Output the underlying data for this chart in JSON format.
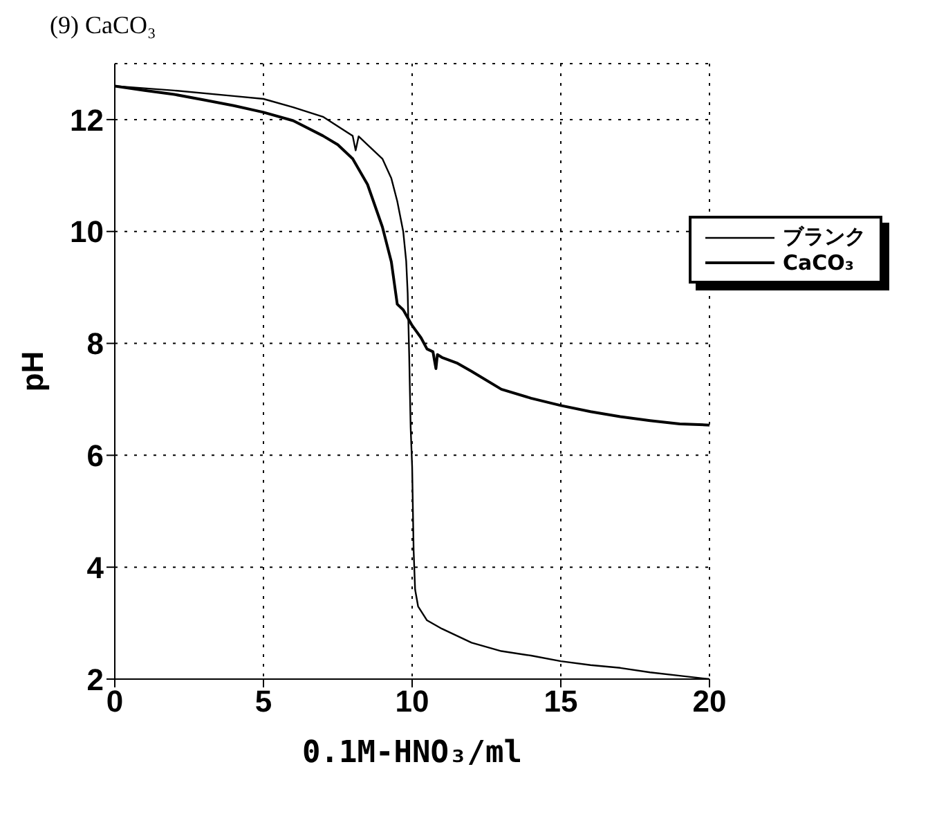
{
  "chart_data": {
    "type": "line",
    "title": "(9) CaCO₃",
    "xlabel": "0.1M-HNO₃/ml",
    "ylabel": "pH",
    "xlim": [
      0,
      20
    ],
    "xticks": [
      0,
      5,
      10,
      15,
      20
    ],
    "ylim": [
      2,
      13
    ],
    "yticks": [
      2,
      4,
      6,
      8,
      10,
      12
    ],
    "grid": true,
    "legend": "top right",
    "marker": "none",
    "line_style": "solid",
    "series": [
      {
        "name": "ブランク",
        "color": "#000000",
        "x": [
          0,
          2,
          4,
          5,
          6,
          7,
          8,
          8.1,
          8.2,
          8.5,
          9,
          9.3,
          9.5,
          9.7,
          9.8,
          9.85,
          9.9,
          9.95,
          10,
          10.05,
          10.1,
          10.2,
          10.5,
          11,
          12,
          13,
          14,
          15,
          16,
          17,
          18,
          19,
          20
        ],
        "values": [
          12.6,
          12.52,
          12.42,
          12.37,
          12.22,
          12.05,
          11.71,
          11.45,
          11.7,
          11.55,
          11.3,
          10.95,
          10.54,
          10.0,
          9.47,
          8.9,
          7.8,
          6.5,
          5.8,
          4.3,
          3.6,
          3.3,
          3.05,
          2.9,
          2.65,
          2.5,
          2.42,
          2.32,
          2.25,
          2.2,
          2.12,
          2.06,
          2.0
        ]
      },
      {
        "name": "CaCO₃",
        "color": "#000000",
        "x": [
          0,
          1,
          2,
          3,
          4,
          5,
          6,
          7,
          7.5,
          8,
          8.5,
          9,
          9.3,
          9.5,
          9.7,
          10,
          10.3,
          10.5,
          10.7,
          10.8,
          10.85,
          11,
          11.5,
          12,
          13,
          14,
          15,
          16,
          17,
          18,
          19,
          20
        ],
        "values": [
          12.6,
          12.52,
          12.45,
          12.35,
          12.25,
          12.13,
          11.98,
          11.71,
          11.55,
          11.3,
          10.84,
          10.08,
          9.46,
          8.7,
          8.6,
          8.32,
          8.1,
          7.9,
          7.85,
          7.55,
          7.8,
          7.75,
          7.65,
          7.5,
          7.18,
          7.02,
          6.89,
          6.78,
          6.69,
          6.62,
          6.56,
          6.54
        ]
      }
    ]
  }
}
